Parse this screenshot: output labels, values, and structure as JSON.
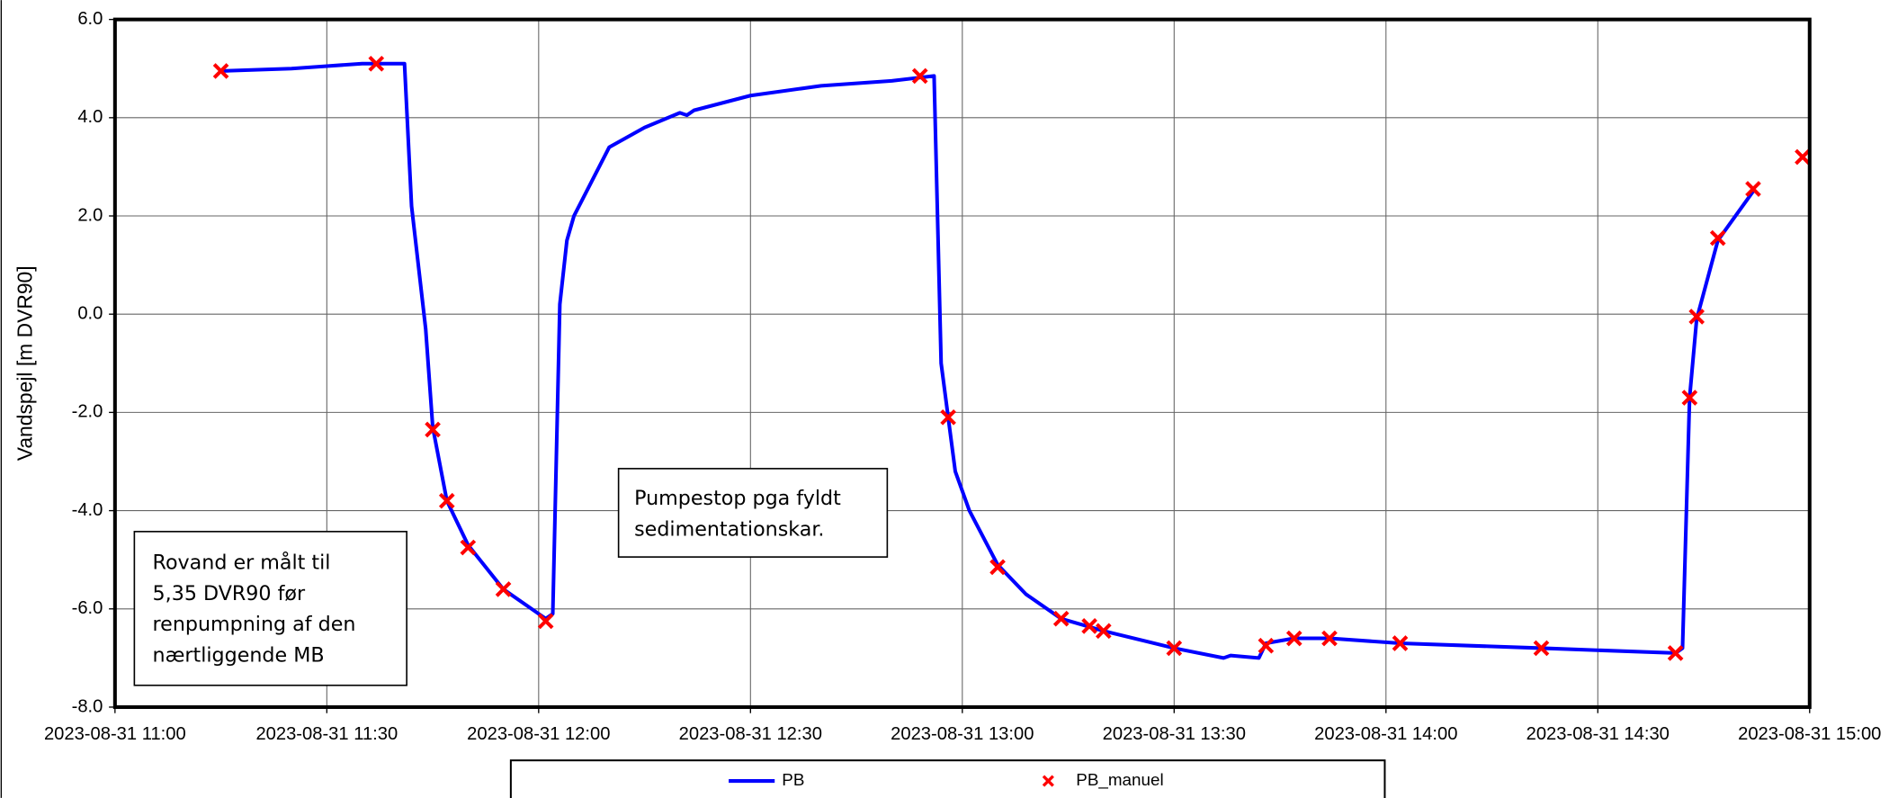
{
  "chart_data": {
    "type": "line",
    "y_label": "Vandspejl [m DVR90]",
    "xlim": [
      "2023-08-31 11:00",
      "2023-08-31 15:00"
    ],
    "xticks": [
      "2023-08-31 11:00",
      "2023-08-31 11:30",
      "2023-08-31 12:00",
      "2023-08-31 12:30",
      "2023-08-31 13:00",
      "2023-08-31 13:30",
      "2023-08-31 14:00",
      "2023-08-31 14:30",
      "2023-08-31 15:00"
    ],
    "ylim": [
      -8,
      6
    ],
    "yticks": [
      {
        "value": 6,
        "label": "6.0"
      },
      {
        "value": 4,
        "label": "4.0"
      },
      {
        "value": 2,
        "label": "2.0"
      },
      {
        "value": 0,
        "label": "0.0"
      },
      {
        "value": -2,
        "label": "-2.0"
      },
      {
        "value": -4,
        "label": "-4.0"
      },
      {
        "value": -6,
        "label": "-6.0"
      },
      {
        "value": -8,
        "label": "-8.0"
      }
    ],
    "grid": true,
    "series": [
      {
        "name": "PB",
        "type": "line",
        "color": "#0000ff",
        "x": [
          "2023-08-31 11:15",
          "2023-08-31 11:25",
          "2023-08-31 11:30",
          "2023-08-31 11:35",
          "2023-08-31 11:41",
          "2023-08-31 11:42",
          "2023-08-31 11:44",
          "2023-08-31 11:45",
          "2023-08-31 11:47",
          "2023-08-31 11:50",
          "2023-08-31 11:55",
          "2023-08-31 12:00",
          "2023-08-31 12:01",
          "2023-08-31 12:02",
          "2023-08-31 12:03",
          "2023-08-31 12:04",
          "2023-08-31 12:05",
          "2023-08-31 12:10",
          "2023-08-31 12:15",
          "2023-08-31 12:20",
          "2023-08-31 12:21",
          "2023-08-31 12:22",
          "2023-08-31 12:30",
          "2023-08-31 12:40",
          "2023-08-31 12:50",
          "2023-08-31 12:56",
          "2023-08-31 12:57",
          "2023-08-31 12:58",
          "2023-08-31 12:59",
          "2023-08-31 13:01",
          "2023-08-31 13:05",
          "2023-08-31 13:09",
          "2023-08-31 13:14",
          "2023-08-31 13:20",
          "2023-08-31 13:30",
          "2023-08-31 13:37",
          "2023-08-31 13:38",
          "2023-08-31 13:42",
          "2023-08-31 13:43",
          "2023-08-31 13:47",
          "2023-08-31 13:52",
          "2023-08-31 14:02",
          "2023-08-31 14:22",
          "2023-08-31 14:41",
          "2023-08-31 14:42",
          "2023-08-31 14:43",
          "2023-08-31 14:44",
          "2023-08-31 14:47",
          "2023-08-31 14:52"
        ],
        "values": [
          4.95,
          5.0,
          5.05,
          5.1,
          5.1,
          2.2,
          -0.3,
          -2.3,
          -3.8,
          -4.7,
          -5.6,
          -6.1,
          -6.2,
          -6.1,
          0.2,
          1.5,
          2.0,
          3.4,
          3.8,
          4.1,
          4.05,
          4.15,
          4.45,
          4.65,
          4.75,
          4.85,
          -1.0,
          -2.1,
          -3.2,
          -4.0,
          -5.1,
          -5.7,
          -6.2,
          -6.45,
          -6.8,
          -7.0,
          -6.95,
          -7.0,
          -6.7,
          -6.6,
          -6.6,
          -6.7,
          -6.8,
          -6.9,
          -6.8,
          -1.7,
          -0.1,
          1.5,
          2.5
        ]
      },
      {
        "name": "PB_manuel",
        "type": "scatter",
        "color": "#ff0000",
        "x": [
          "2023-08-31 11:15",
          "2023-08-31 11:37",
          "2023-08-31 11:45",
          "2023-08-31 11:47",
          "2023-08-31 11:50",
          "2023-08-31 11:55",
          "2023-08-31 12:01",
          "2023-08-31 12:54",
          "2023-08-31 12:58",
          "2023-08-31 13:05",
          "2023-08-31 13:14",
          "2023-08-31 13:18",
          "2023-08-31 13:20",
          "2023-08-31 13:30",
          "2023-08-31 13:43",
          "2023-08-31 13:47",
          "2023-08-31 13:52",
          "2023-08-31 14:02",
          "2023-08-31 14:22",
          "2023-08-31 14:41",
          "2023-08-31 14:43",
          "2023-08-31 14:44",
          "2023-08-31 14:47",
          "2023-08-31 14:52",
          "2023-08-31 14:59"
        ],
        "values": [
          4.95,
          5.1,
          -2.35,
          -3.8,
          -4.75,
          -5.6,
          -6.25,
          4.85,
          -2.1,
          -5.15,
          -6.2,
          -6.35,
          -6.45,
          -6.8,
          -6.75,
          -6.6,
          -6.6,
          -6.7,
          -6.8,
          -6.9,
          -1.7,
          -0.05,
          1.55,
          2.55,
          3.2
        ]
      }
    ],
    "annotations": [
      {
        "lines": [
          "Rovand er målt til",
          "5,35 DVR90 før",
          "renpumpning af den",
          "nærtliggende MB"
        ]
      },
      {
        "lines": [
          "Pumpestop pga fyldt",
          "sedimentationskar."
        ]
      }
    ]
  }
}
